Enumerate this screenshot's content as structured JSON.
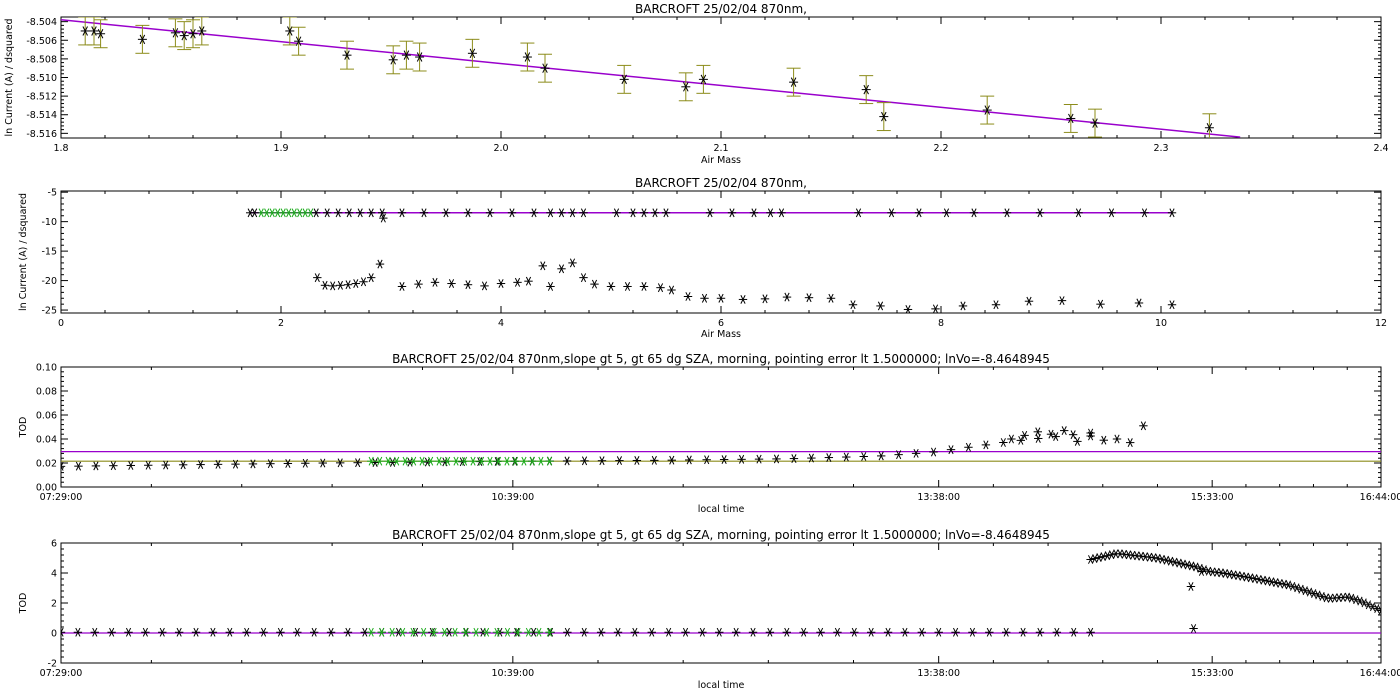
{
  "colors": {
    "fit": "#9900cc",
    "errorbar": "#8c8c1a",
    "selected": "#1aaa1a",
    "marker": "#000000",
    "olive_line": "#8c8c1a"
  },
  "chart_data": [
    {
      "type": "scatter",
      "title": "BARCROFT 25/02/04 870nm,",
      "xlabel": "Air Mass",
      "ylabel": "ln Current (A) / dsquared",
      "xlim": [
        1.8,
        2.4
      ],
      "ylim": [
        -8.5165,
        -8.5035
      ],
      "xticks": [
        "1.8",
        "1.9",
        "2.0",
        "2.1",
        "2.2",
        "2.3",
        "2.4"
      ],
      "xtick_values": [
        1.8,
        1.9,
        2.0,
        2.1,
        2.2,
        2.3,
        2.4
      ],
      "yticks": [
        "-8.504",
        "-8.506",
        "-8.508",
        "-8.510",
        "-8.512",
        "-8.514",
        "-8.516"
      ],
      "ytick_values": [
        -8.504,
        -8.506,
        -8.508,
        -8.51,
        -8.512,
        -8.514,
        -8.516
      ],
      "fit_line": {
        "x": [
          1.8,
          2.336
        ],
        "y": [
          -8.5038,
          -8.5164
        ]
      },
      "error_half_width": 0.0015,
      "points": {
        "x": [
          1.811,
          1.815,
          1.818,
          1.837,
          1.852,
          1.856,
          1.86,
          1.864,
          1.904,
          1.908,
          1.93,
          1.951,
          1.957,
          1.963,
          1.987,
          2.012,
          2.02,
          2.056,
          2.084,
          2.092,
          2.133,
          2.166,
          2.174,
          2.221,
          2.259,
          2.27,
          2.322
        ],
        "y": [
          -8.505,
          -8.505,
          -8.5053,
          -8.5059,
          -8.5052,
          -8.5055,
          -8.5053,
          -8.505,
          -8.505,
          -8.5061,
          -8.5076,
          -8.5081,
          -8.5076,
          -8.5078,
          -8.5074,
          -8.5078,
          -8.509,
          -8.5102,
          -8.511,
          -8.5102,
          -8.5105,
          -8.5113,
          -8.5142,
          -8.5135,
          -8.5144,
          -8.5149,
          -8.5154
        ]
      }
    },
    {
      "type": "scatter",
      "title": "BARCROFT 25/02/04 870nm,",
      "xlabel": "Air Mass",
      "ylabel": "ln Current (A) / dsquared",
      "xlim": [
        0,
        12
      ],
      "ylim": [
        -25.5,
        -4.8
      ],
      "xticks": [
        "0",
        "2",
        "4",
        "6",
        "8",
        "10",
        "12"
      ],
      "xtick_values": [
        0,
        2,
        4,
        6,
        8,
        10,
        12
      ],
      "yticks": [
        "-5",
        "-10",
        "-15",
        "-20",
        "-25"
      ],
      "ytick_values": [
        -5,
        -10,
        -15,
        -20,
        -25
      ],
      "fit_line": {
        "x": [
          1.72,
          10.1
        ],
        "y": [
          -8.5,
          -8.5
        ]
      },
      "series": [
        {
          "name": "selected",
          "color": "#1aaa1a",
          "x": [
            1.82,
            1.87,
            1.92,
            1.97,
            2.02,
            2.07,
            2.12,
            2.17,
            2.22,
            2.27
          ],
          "y": [
            -8.5,
            -8.5,
            -8.5,
            -8.5,
            -8.5,
            -8.5,
            -8.5,
            -8.5,
            -8.5,
            -8.5
          ]
        },
        {
          "name": "upper",
          "color": "#000000",
          "x": [
            1.72,
            1.76,
            2.32,
            2.42,
            2.52,
            2.62,
            2.72,
            2.82,
            2.92,
            3.1,
            3.3,
            3.5,
            3.7,
            3.9,
            4.1,
            4.3,
            4.45,
            4.55,
            4.65,
            4.75,
            5.05,
            5.2,
            5.3,
            5.4,
            5.5,
            5.9,
            6.1,
            6.3,
            6.45,
            6.55,
            7.25,
            7.55,
            7.8,
            8.05,
            8.3,
            8.6,
            8.9,
            9.25,
            9.55,
            9.85,
            10.1
          ],
          "y": [
            -8.5,
            -8.5,
            -8.5,
            -8.5,
            -8.5,
            -8.5,
            -8.5,
            -8.5,
            -8.5,
            -8.5,
            -8.5,
            -8.5,
            -8.5,
            -8.5,
            -8.5,
            -8.5,
            -8.5,
            -8.5,
            -8.5,
            -8.5,
            -8.5,
            -8.5,
            -8.5,
            -8.5,
            -8.5,
            -8.5,
            -8.5,
            -8.5,
            -8.5,
            -8.5,
            -8.5,
            -8.5,
            -8.5,
            -8.5,
            -8.5,
            -8.5,
            -8.5,
            -8.5,
            -8.5,
            -8.5,
            -8.5
          ]
        },
        {
          "name": "lower",
          "color": "#000000",
          "x": [
            2.33,
            2.4,
            2.47,
            2.54,
            2.61,
            2.68,
            2.75,
            2.82,
            2.9,
            2.93,
            3.1,
            3.25,
            3.4,
            3.55,
            3.7,
            3.85,
            4.0,
            4.15,
            4.25,
            4.38,
            4.45,
            4.55,
            4.65,
            4.75,
            4.85,
            5.0,
            5.15,
            5.3,
            5.45,
            5.55,
            5.7,
            5.85,
            6.0,
            6.2,
            6.4,
            6.6,
            6.8,
            7.0,
            7.2,
            7.45,
            7.7,
            7.95,
            8.2,
            8.5,
            8.8,
            9.1,
            9.45,
            9.8,
            10.1
          ],
          "y": [
            -19.5,
            -20.8,
            -20.9,
            -20.8,
            -20.7,
            -20.5,
            -20.2,
            -19.5,
            -17.2,
            -9.4,
            -21.0,
            -20.6,
            -20.3,
            -20.5,
            -20.7,
            -20.9,
            -20.5,
            -20.3,
            -20.1,
            -17.5,
            -21.0,
            -18.0,
            -17.0,
            -19.5,
            -20.6,
            -21.0,
            -21.0,
            -21.0,
            -21.2,
            -21.6,
            -22.7,
            -23.0,
            -23.0,
            -23.2,
            -23.1,
            -22.8,
            -22.9,
            -23.0,
            -24.1,
            -24.3,
            -24.9,
            -24.8,
            -24.3,
            -24.1,
            -23.5,
            -23.4,
            -24.0,
            -23.8,
            -24.1
          ]
        }
      ]
    },
    {
      "type": "scatter",
      "title": "BARCROFT 25/02/04 870nm,slope gt 5, gt 65 dg SZA, morning, pointing error lt 1.5000000; lnVo=-8.4648945",
      "xlabel": "local time",
      "ylabel": "TOD",
      "xlim": [
        0,
        1
      ],
      "ylim": [
        0,
        0.1
      ],
      "xticks": [
        "07:29:00",
        "10:39:00",
        "13:38:00",
        "15:33:00",
        "16:44:00"
      ],
      "xtick_values": [
        0,
        0.3423,
        0.6649,
        0.8721,
        1.0
      ],
      "yticks": [
        "0.10",
        "0.08",
        "0.06",
        "0.04",
        "0.02",
        "0.00"
      ],
      "ytick_values": [
        0.1,
        0.08,
        0.06,
        0.04,
        0.02,
        0.0
      ],
      "hlines": [
        {
          "y": 0.0295,
          "color": "#9900cc"
        },
        {
          "y": 0.0215,
          "color": "#8c8c1a"
        }
      ],
      "series": [
        {
          "name": "black",
          "color": "#000000",
          "x_from": 0.0,
          "x_to": 0.78,
          "points": 60,
          "y_points": [
            [
              0.0,
              0.0172
            ],
            [
              0.2,
              0.02
            ],
            [
              0.35,
              0.0215
            ],
            [
              0.45,
              0.0222
            ],
            [
              0.55,
              0.0235
            ],
            [
              0.62,
              0.0258
            ],
            [
              0.66,
              0.029
            ],
            [
              0.72,
              0.038
            ],
            [
              0.77,
              0.044
            ],
            [
              0.78,
              0.0425
            ]
          ]
        },
        {
          "name": "green",
          "color": "#1aaa1a",
          "x_from": 0.235,
          "x_to": 0.37,
          "points": 22,
          "y_points": [
            [
              0.235,
              0.0215
            ],
            [
              0.37,
              0.0215
            ]
          ]
        },
        {
          "name": "scatter-tail",
          "color": "#000000",
          "x": [
            0.72,
            0.73,
            0.74,
            0.75,
            0.76,
            0.77,
            0.78,
            0.79,
            0.8,
            0.81,
            0.82
          ],
          "y": [
            0.04,
            0.043,
            0.046,
            0.044,
            0.047,
            0.038,
            0.045,
            0.039,
            0.04,
            0.037,
            0.051
          ]
        }
      ]
    },
    {
      "type": "scatter",
      "title": "BARCROFT 25/02/04 870nm,slope gt 5, gt 65 dg SZA, morning, pointing error lt 1.5000000; lnVo=-8.4648945",
      "xlabel": "local time",
      "ylabel": "TOD",
      "xlim": [
        0,
        1
      ],
      "ylim": [
        -2,
        6
      ],
      "xticks": [
        "07:29:00",
        "10:39:00",
        "13:38:00",
        "15:33:00",
        "16:44:00"
      ],
      "xtick_values": [
        0,
        0.3423,
        0.6649,
        0.8721,
        1.0
      ],
      "yticks": [
        "6",
        "4",
        "2",
        "0",
        "-2"
      ],
      "ytick_values": [
        6,
        4,
        2,
        0,
        -2
      ],
      "hlines": [
        {
          "y": 0.0,
          "color": "#9900cc"
        }
      ],
      "series": [
        {
          "name": "zero-band",
          "color": "#000000",
          "x_from": 0.0,
          "x_to": 0.78,
          "points": 62,
          "y_points": [
            [
              0.0,
              0.05
            ],
            [
              0.78,
              0.05
            ]
          ]
        },
        {
          "name": "green",
          "color": "#1aaa1a",
          "x_from": 0.235,
          "x_to": 0.37,
          "points": 18,
          "y_points": [
            [
              0.235,
              0.05
            ],
            [
              0.37,
              0.05
            ]
          ]
        },
        {
          "name": "high",
          "color": "#000000",
          "x_from": 0.78,
          "x_to": 1.0,
          "points": 70,
          "y_points": [
            [
              0.78,
              4.9
            ],
            [
              0.8,
              5.3
            ],
            [
              0.83,
              5.0
            ],
            [
              0.86,
              4.4
            ],
            [
              0.87,
              4.1
            ],
            [
              0.88,
              4.0
            ],
            [
              0.9,
              3.7
            ],
            [
              0.93,
              3.2
            ],
            [
              0.95,
              2.6
            ],
            [
              0.96,
              2.3
            ],
            [
              0.975,
              2.4
            ],
            [
              0.985,
              2.1
            ],
            [
              1.0,
              1.5
            ]
          ]
        },
        {
          "name": "outliers",
          "color": "#000000",
          "x": [
            0.856,
            0.858,
            0.864
          ],
          "y": [
            3.1,
            0.3,
            4.1
          ]
        }
      ]
    }
  ]
}
